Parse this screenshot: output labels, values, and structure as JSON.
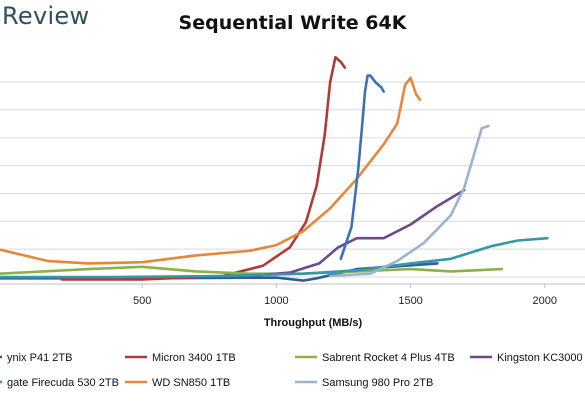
{
  "brand": {
    "text": "Review"
  },
  "chart_data": {
    "type": "line",
    "title": "Sequential Write 64K",
    "xlabel": "Throughput (MB/s)",
    "ylabel": "",
    "xlim": [
      -30,
      2150
    ],
    "ylim": [
      0,
      10
    ],
    "x_ticks": [
      500,
      1000,
      1500,
      2000
    ],
    "y_grid_count": 8,
    "grid": "horizontal",
    "legend_position": "bottom",
    "series": [
      {
        "name": "ynix P41 2TB",
        "color": "#2e5d9f",
        "points": [
          [
            -30,
            0.25
          ],
          [
            200,
            0.25
          ],
          [
            500,
            0.25
          ],
          [
            800,
            0.27
          ],
          [
            1000,
            0.28
          ],
          [
            1100,
            0.15
          ],
          [
            1150,
            0.25
          ],
          [
            1300,
            0.65
          ],
          [
            1600,
            0.9
          ]
        ]
      },
      {
        "name": "Micron 3400 1TB",
        "color": "#b03a36",
        "points": [
          [
            200,
            0.2
          ],
          [
            500,
            0.2
          ],
          [
            800,
            0.35
          ],
          [
            950,
            0.8
          ],
          [
            1050,
            1.6
          ],
          [
            1110,
            2.7
          ],
          [
            1150,
            4.3
          ],
          [
            1180,
            6.5
          ],
          [
            1200,
            8.8
          ],
          [
            1220,
            9.9
          ],
          [
            1240,
            9.7
          ],
          [
            1255,
            9.45
          ]
        ]
      },
      {
        "name": "Sabrent Rocket 4 Plus 4TB",
        "color": "#8cb04a",
        "points": [
          [
            -30,
            0.45
          ],
          [
            300,
            0.65
          ],
          [
            500,
            0.75
          ],
          [
            700,
            0.55
          ],
          [
            900,
            0.45
          ],
          [
            1100,
            0.45
          ],
          [
            1300,
            0.55
          ],
          [
            1500,
            0.65
          ],
          [
            1650,
            0.55
          ],
          [
            1840,
            0.65
          ]
        ]
      },
      {
        "name": "Kingston KC3000",
        "color": "#6c4a8c",
        "points": [
          [
            850,
            0.3
          ],
          [
            1050,
            0.5
          ],
          [
            1160,
            0.9
          ],
          [
            1230,
            1.6
          ],
          [
            1300,
            2.0
          ],
          [
            1400,
            2.0
          ],
          [
            1500,
            2.6
          ],
          [
            1600,
            3.4
          ],
          [
            1700,
            4.1
          ]
        ]
      },
      {
        "name": "gate Firecuda 530 2TB",
        "color": "#3199a7",
        "points": [
          [
            -30,
            0.3
          ],
          [
            400,
            0.3
          ],
          [
            800,
            0.35
          ],
          [
            1100,
            0.45
          ],
          [
            1300,
            0.6
          ],
          [
            1500,
            0.9
          ],
          [
            1650,
            1.1
          ],
          [
            1800,
            1.65
          ],
          [
            1900,
            1.9
          ],
          [
            2010,
            2.0
          ]
        ]
      },
      {
        "name": "WD SN850 1TB",
        "color": "#e6873c",
        "points": [
          [
            -30,
            1.5
          ],
          [
            150,
            1.0
          ],
          [
            300,
            0.9
          ],
          [
            500,
            0.95
          ],
          [
            700,
            1.25
          ],
          [
            900,
            1.45
          ],
          [
            1000,
            1.7
          ],
          [
            1100,
            2.3
          ],
          [
            1200,
            3.3
          ],
          [
            1300,
            4.6
          ],
          [
            1400,
            6.1
          ],
          [
            1450,
            7.0
          ],
          [
            1480,
            8.7
          ],
          [
            1500,
            9.0
          ],
          [
            1520,
            8.3
          ],
          [
            1535,
            8.05
          ]
        ]
      },
      {
        "name": "Samsung 980 Pro 2TB",
        "color": "#9bb3d3",
        "points": [
          [
            1200,
            0.35
          ],
          [
            1350,
            0.45
          ],
          [
            1450,
            1.0
          ],
          [
            1550,
            1.8
          ],
          [
            1650,
            3.0
          ],
          [
            1700,
            4.2
          ],
          [
            1730,
            5.4
          ],
          [
            1750,
            6.2
          ],
          [
            1765,
            6.8
          ],
          [
            1790,
            6.9
          ]
        ]
      },
      {
        "name": "",
        "color": "#3a73b4",
        "points": [
          [
            1240,
            1.1
          ],
          [
            1280,
            2.5
          ],
          [
            1305,
            5.0
          ],
          [
            1320,
            7.0
          ],
          [
            1330,
            8.4
          ],
          [
            1340,
            9.1
          ],
          [
            1350,
            9.1
          ],
          [
            1370,
            8.8
          ],
          [
            1390,
            8.6
          ],
          [
            1400,
            8.4
          ]
        ]
      }
    ]
  }
}
